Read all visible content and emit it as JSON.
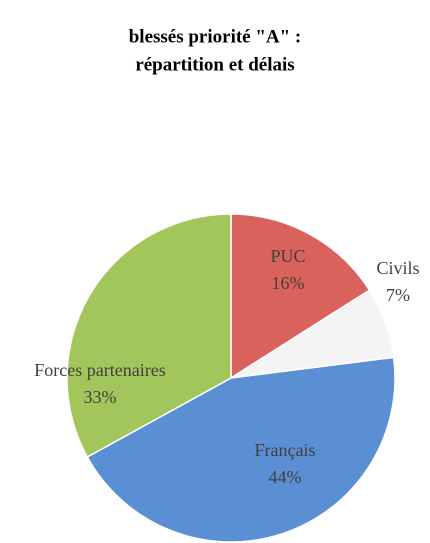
{
  "chart_data": {
    "type": "pie",
    "title": [
      "blessés priorité \"A\" :",
      "répartition et délais"
    ],
    "categories": [
      "PUC",
      "Civils",
      "Français",
      "Forces partenaires"
    ],
    "values": [
      16,
      7,
      44,
      33
    ],
    "value_labels": [
      "16%",
      "7%",
      "44%",
      "33%"
    ],
    "colors": [
      "#d9625c",
      "#f4f4f4",
      "#5b8fd4",
      "#a3c65c"
    ]
  }
}
